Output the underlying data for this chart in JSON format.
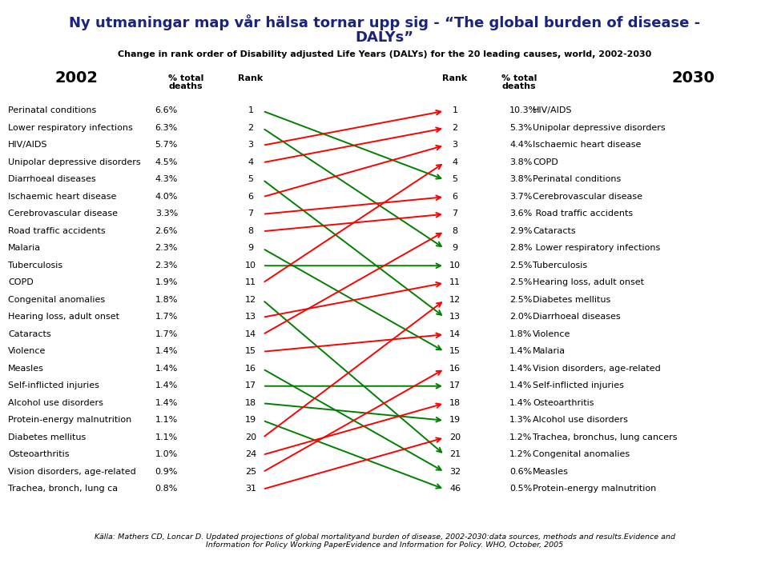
{
  "title1": "Ny utmaningar map vår hälsa tornar upp sig - “The global burden of disease -",
  "title1b": "DALYs”",
  "subtitle": "Change in rank order of Disability adjusted Life Years (DALYs) for the 20 leading causes, world, 2002-2030",
  "year_left": "2002",
  "year_right": "2030",
  "footnote": "Källa: Mathers CD, Loncar D. Updated projections of global mortalityand burden of disease, 2002-2030:data sources, methods and results.Evidence and\nInformation for Policy Working PaperEvidence and Information for Policy. WHO, October, 2005",
  "left_data": [
    [
      "Perinatal conditions",
      "6.6%",
      1
    ],
    [
      "Lower respiratory infections",
      "6.3%",
      2
    ],
    [
      "HIV/AIDS",
      "5.7%",
      3
    ],
    [
      "Unipolar depressive disorders",
      "4.5%",
      4
    ],
    [
      "Diarrhoeal diseases",
      "4.3%",
      5
    ],
    [
      "Ischaemic heart disease",
      "4.0%",
      6
    ],
    [
      "Cerebrovascular disease",
      "3.3%",
      7
    ],
    [
      "Road traffic accidents",
      "2.6%",
      8
    ],
    [
      "Malaria",
      "2.3%",
      9
    ],
    [
      "Tuberculosis",
      "2.3%",
      10
    ],
    [
      "COPD",
      "1.9%",
      11
    ],
    [
      "Congenital anomalies",
      "1.8%",
      12
    ],
    [
      "Hearing loss, adult onset",
      "1.7%",
      13
    ],
    [
      "Cataracts",
      "1.7%",
      14
    ],
    [
      "Violence",
      "1.4%",
      15
    ],
    [
      "Measles",
      "1.4%",
      16
    ],
    [
      "Self-inflicted injuries",
      "1.4%",
      17
    ],
    [
      "Alcohol use disorders",
      "1.4%",
      18
    ],
    [
      "Protein-energy malnutrition",
      "1.1%",
      19
    ],
    [
      "Diabetes mellitus",
      "1.1%",
      20
    ],
    [
      "Osteoarthritis",
      "1.0%",
      24
    ],
    [
      "Vision disorders, age-related",
      "0.9%",
      25
    ],
    [
      "Trachea, bronch, lung ca",
      "0.8%",
      31
    ]
  ],
  "right_data": [
    [
      1,
      "10.3%",
      "HIV/AIDS"
    ],
    [
      2,
      "5.3%",
      "Unipolar depressive disorders"
    ],
    [
      3,
      "4.4%",
      "Ischaemic heart disease"
    ],
    [
      4,
      "3.8%",
      "COPD"
    ],
    [
      5,
      "3.8%",
      "Perinatal conditions"
    ],
    [
      6,
      "3.7%",
      "Cerebrovascular disease"
    ],
    [
      7,
      "3.6%",
      " Road traffic accidents"
    ],
    [
      8,
      "2.9%",
      "Cataracts"
    ],
    [
      9,
      "2.8%",
      " Lower respiratory infections"
    ],
    [
      10,
      "2.5%",
      "Tuberculosis"
    ],
    [
      11,
      "2.5%",
      "Hearing loss, adult onset"
    ],
    [
      12,
      "2.5%",
      "Diabetes mellitus"
    ],
    [
      13,
      "2.0%",
      "Diarrhoeal diseases"
    ],
    [
      14,
      "1.8%",
      "Violence"
    ],
    [
      15,
      "1.4%",
      "Malaria"
    ],
    [
      16,
      "1.4%",
      "Vision disorders, age-related"
    ],
    [
      17,
      "1.4%",
      "Self-inflicted injuries"
    ],
    [
      18,
      "1.4%",
      "Osteoarthritis"
    ],
    [
      19,
      "1.3%",
      "Alcohol use disorders"
    ],
    [
      20,
      "1.2%",
      "Trachea, bronchus, lung cancers"
    ],
    [
      21,
      "1.2%",
      "Congenital anomalies"
    ],
    [
      32,
      "0.6%",
      "Measles"
    ],
    [
      46,
      "0.5%",
      "Protein-energy malnutrition"
    ]
  ],
  "arrows": [
    {
      "from_rank": 1,
      "to_rank": 5,
      "color": "green"
    },
    {
      "from_rank": 2,
      "to_rank": 9,
      "color": "green"
    },
    {
      "from_rank": 3,
      "to_rank": 1,
      "color": "red"
    },
    {
      "from_rank": 4,
      "to_rank": 2,
      "color": "red"
    },
    {
      "from_rank": 5,
      "to_rank": 13,
      "color": "green"
    },
    {
      "from_rank": 6,
      "to_rank": 3,
      "color": "red"
    },
    {
      "from_rank": 7,
      "to_rank": 6,
      "color": "red"
    },
    {
      "from_rank": 8,
      "to_rank": 7,
      "color": "red"
    },
    {
      "from_rank": 9,
      "to_rank": 15,
      "color": "green"
    },
    {
      "from_rank": 10,
      "to_rank": 10,
      "color": "green"
    },
    {
      "from_rank": 11,
      "to_rank": 4,
      "color": "red"
    },
    {
      "from_rank": 12,
      "to_rank": 21,
      "color": "green"
    },
    {
      "from_rank": 13,
      "to_rank": 11,
      "color": "red"
    },
    {
      "from_rank": 14,
      "to_rank": 8,
      "color": "red"
    },
    {
      "from_rank": 15,
      "to_rank": 14,
      "color": "red"
    },
    {
      "from_rank": 16,
      "to_rank": 32,
      "color": "green"
    },
    {
      "from_rank": 17,
      "to_rank": 17,
      "color": "green"
    },
    {
      "from_rank": 18,
      "to_rank": 19,
      "color": "green"
    },
    {
      "from_rank": 19,
      "to_rank": 46,
      "color": "green"
    },
    {
      "from_rank": 20,
      "to_rank": 12,
      "color": "red"
    },
    {
      "from_rank": 24,
      "to_rank": 18,
      "color": "red"
    },
    {
      "from_rank": 25,
      "to_rank": 16,
      "color": "red"
    },
    {
      "from_rank": 31,
      "to_rank": 20,
      "color": "red"
    }
  ],
  "bg_color": "#ffffff",
  "title_color": "#1a237e",
  "text_color": "#000000"
}
